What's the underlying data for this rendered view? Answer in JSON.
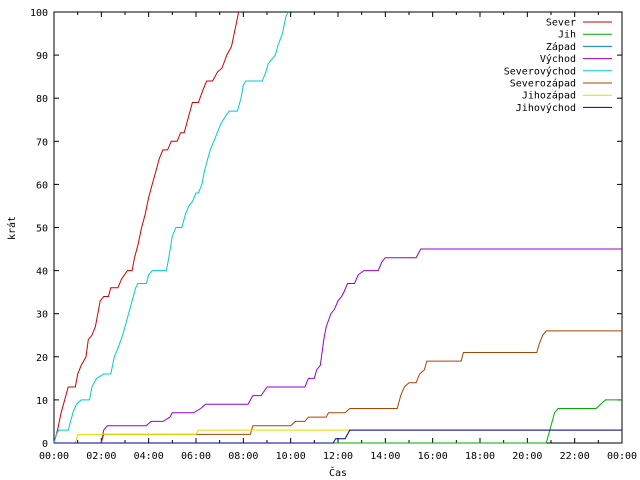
{
  "chart_data": {
    "type": "line",
    "xlabel": "Čas",
    "ylabel": "krát",
    "xlim": [
      0,
      24
    ],
    "ylim": [
      0,
      100
    ],
    "x_ticks": [
      "00:00",
      "02:00",
      "04:00",
      "06:00",
      "08:00",
      "10:00",
      "12:00",
      "14:00",
      "16:00",
      "18:00",
      "20:00",
      "22:00",
      "00:00"
    ],
    "y_ticks": [
      0,
      10,
      20,
      30,
      40,
      50,
      60,
      70,
      80,
      90,
      100
    ],
    "grid": false,
    "legend_position": "top-right",
    "series": [
      {
        "name": "Sever",
        "color": "#cc0000",
        "points": [
          [
            0,
            0
          ],
          [
            0.15,
            3
          ],
          [
            0.3,
            7
          ],
          [
            0.45,
            10
          ],
          [
            0.6,
            13
          ],
          [
            0.9,
            13
          ],
          [
            1.0,
            16
          ],
          [
            1.15,
            18
          ],
          [
            1.35,
            20
          ],
          [
            1.45,
            24
          ],
          [
            1.6,
            25
          ],
          [
            1.75,
            27
          ],
          [
            1.85,
            30
          ],
          [
            1.95,
            33
          ],
          [
            2.1,
            34
          ],
          [
            2.3,
            34
          ],
          [
            2.4,
            36
          ],
          [
            2.7,
            36
          ],
          [
            2.85,
            38
          ],
          [
            3.1,
            40
          ],
          [
            3.3,
            40
          ],
          [
            3.4,
            43
          ],
          [
            3.55,
            46
          ],
          [
            3.7,
            50
          ],
          [
            3.85,
            53
          ],
          [
            4.0,
            57
          ],
          [
            4.15,
            60
          ],
          [
            4.3,
            63
          ],
          [
            4.45,
            66
          ],
          [
            4.6,
            68
          ],
          [
            4.8,
            68
          ],
          [
            4.95,
            70
          ],
          [
            5.2,
            70
          ],
          [
            5.35,
            72
          ],
          [
            5.5,
            72
          ],
          [
            5.65,
            75
          ],
          [
            5.85,
            79
          ],
          [
            6.1,
            79
          ],
          [
            6.3,
            82
          ],
          [
            6.45,
            84
          ],
          [
            6.7,
            84
          ],
          [
            6.9,
            86
          ],
          [
            7.1,
            87
          ],
          [
            7.3,
            90
          ],
          [
            7.5,
            92
          ],
          [
            7.65,
            96
          ],
          [
            7.8,
            100
          ]
        ]
      },
      {
        "name": "Jih",
        "color": "#00aa00",
        "points": [
          [
            0,
            0
          ],
          [
            20.8,
            0
          ],
          [
            20.95,
            3
          ],
          [
            21.05,
            5
          ],
          [
            21.15,
            7
          ],
          [
            21.3,
            8
          ],
          [
            22.9,
            8
          ],
          [
            23.1,
            9
          ],
          [
            23.3,
            10
          ],
          [
            24,
            10
          ]
        ]
      },
      {
        "name": "Západ",
        "color": "#0088aa",
        "points": []
      },
      {
        "name": "Východ",
        "color": "#9900cc",
        "points": [
          [
            0,
            0
          ],
          [
            2.0,
            0
          ],
          [
            2.1,
            3
          ],
          [
            2.25,
            4
          ],
          [
            3.9,
            4
          ],
          [
            4.1,
            5
          ],
          [
            4.6,
            5
          ],
          [
            4.9,
            6
          ],
          [
            5.0,
            7
          ],
          [
            5.9,
            7
          ],
          [
            6.2,
            8
          ],
          [
            6.4,
            9
          ],
          [
            8.2,
            9
          ],
          [
            8.4,
            11
          ],
          [
            8.75,
            11
          ],
          [
            9.0,
            13
          ],
          [
            10.6,
            13
          ],
          [
            10.75,
            15
          ],
          [
            11.0,
            15
          ],
          [
            11.1,
            17
          ],
          [
            11.25,
            18
          ],
          [
            11.4,
            24
          ],
          [
            11.5,
            27
          ],
          [
            11.7,
            30
          ],
          [
            11.85,
            31
          ],
          [
            12.0,
            33
          ],
          [
            12.15,
            34
          ],
          [
            12.25,
            35
          ],
          [
            12.4,
            37
          ],
          [
            12.7,
            37
          ],
          [
            12.85,
            39
          ],
          [
            13.1,
            40
          ],
          [
            13.7,
            40
          ],
          [
            13.85,
            42
          ],
          [
            14.0,
            43
          ],
          [
            15.3,
            43
          ],
          [
            15.5,
            45
          ],
          [
            24,
            45
          ]
        ]
      },
      {
        "name": "Severovýchod",
        "color": "#00cccc",
        "points": [
          [
            0,
            0
          ],
          [
            0.1,
            2
          ],
          [
            0.2,
            3
          ],
          [
            0.6,
            3
          ],
          [
            0.8,
            7
          ],
          [
            0.95,
            9
          ],
          [
            1.15,
            10
          ],
          [
            1.5,
            10
          ],
          [
            1.6,
            13
          ],
          [
            1.8,
            15
          ],
          [
            2.1,
            16
          ],
          [
            2.4,
            16
          ],
          [
            2.55,
            20
          ],
          [
            2.7,
            22
          ],
          [
            2.9,
            25
          ],
          [
            3.1,
            29
          ],
          [
            3.3,
            33
          ],
          [
            3.45,
            36
          ],
          [
            3.55,
            37
          ],
          [
            3.9,
            37
          ],
          [
            4.0,
            39
          ],
          [
            4.15,
            40
          ],
          [
            4.75,
            40
          ],
          [
            4.85,
            43
          ],
          [
            5.0,
            48
          ],
          [
            5.15,
            50
          ],
          [
            5.4,
            50
          ],
          [
            5.55,
            53
          ],
          [
            5.7,
            55
          ],
          [
            5.85,
            56
          ],
          [
            6.0,
            58
          ],
          [
            6.1,
            58
          ],
          [
            6.25,
            60
          ],
          [
            6.35,
            63
          ],
          [
            6.5,
            66
          ],
          [
            6.6,
            68
          ],
          [
            6.75,
            70
          ],
          [
            6.9,
            72
          ],
          [
            7.05,
            74
          ],
          [
            7.15,
            75
          ],
          [
            7.4,
            77
          ],
          [
            7.75,
            77
          ],
          [
            7.9,
            80
          ],
          [
            8.0,
            83
          ],
          [
            8.1,
            84
          ],
          [
            8.8,
            84
          ],
          [
            8.95,
            86
          ],
          [
            9.05,
            88
          ],
          [
            9.2,
            89
          ],
          [
            9.35,
            90
          ],
          [
            9.45,
            92
          ],
          [
            9.65,
            95
          ],
          [
            9.8,
            99
          ],
          [
            9.9,
            100
          ]
        ]
      },
      {
        "name": "Severozápad",
        "color": "#aa4400",
        "points": [
          [
            0,
            0
          ],
          [
            2.0,
            0
          ],
          [
            2.1,
            2
          ],
          [
            8.3,
            2
          ],
          [
            8.4,
            4
          ],
          [
            10.0,
            4
          ],
          [
            10.2,
            5
          ],
          [
            10.6,
            5
          ],
          [
            10.75,
            6
          ],
          [
            11.5,
            6
          ],
          [
            11.6,
            7
          ],
          [
            12.3,
            7
          ],
          [
            12.5,
            8
          ],
          [
            14.5,
            8
          ],
          [
            14.65,
            11
          ],
          [
            14.8,
            13
          ],
          [
            15.0,
            14
          ],
          [
            15.3,
            14
          ],
          [
            15.45,
            16
          ],
          [
            15.65,
            17
          ],
          [
            15.75,
            19
          ],
          [
            17.2,
            19
          ],
          [
            17.3,
            21
          ],
          [
            20.4,
            21
          ],
          [
            20.5,
            23
          ],
          [
            20.65,
            25
          ],
          [
            20.8,
            26
          ],
          [
            24,
            26
          ]
        ]
      },
      {
        "name": "Jihozápad",
        "color": "#dddd00",
        "points": [
          [
            0,
            0
          ],
          [
            0.9,
            0
          ],
          [
            1.0,
            2
          ],
          [
            6.0,
            2
          ],
          [
            6.1,
            3
          ],
          [
            24,
            3
          ]
        ]
      },
      {
        "name": "Jihovýchod",
        "color": "#000099",
        "points": [
          [
            0,
            0
          ],
          [
            11.8,
            0
          ],
          [
            11.9,
            1
          ],
          [
            12.3,
            1
          ],
          [
            12.5,
            3
          ],
          [
            24,
            3
          ]
        ]
      }
    ]
  }
}
